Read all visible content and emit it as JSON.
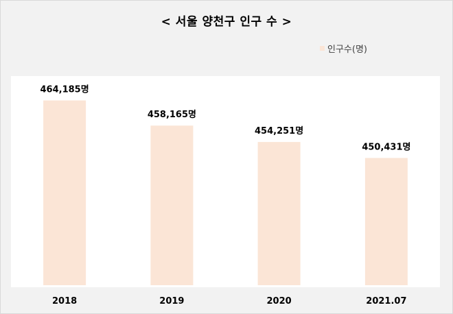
{
  "chart_data": {
    "type": "bar",
    "title": "< 서울 양천구 인구 수 >",
    "categories": [
      "2018",
      "2019",
      "2020",
      "2021.07"
    ],
    "series": [
      {
        "name": "인구수(명)",
        "values": [
          464185,
          458165,
          454251,
          450431
        ],
        "labels": [
          "464,185명",
          "458,165명",
          "454,251명",
          "450,431명"
        ]
      }
    ],
    "bar_color": "#fbe5d6",
    "plot_background": "#ffffff",
    "page_background": "#f2f2f2",
    "legend_position": "top-right",
    "grid": false,
    "ylim": [
      420000,
      470000
    ]
  }
}
